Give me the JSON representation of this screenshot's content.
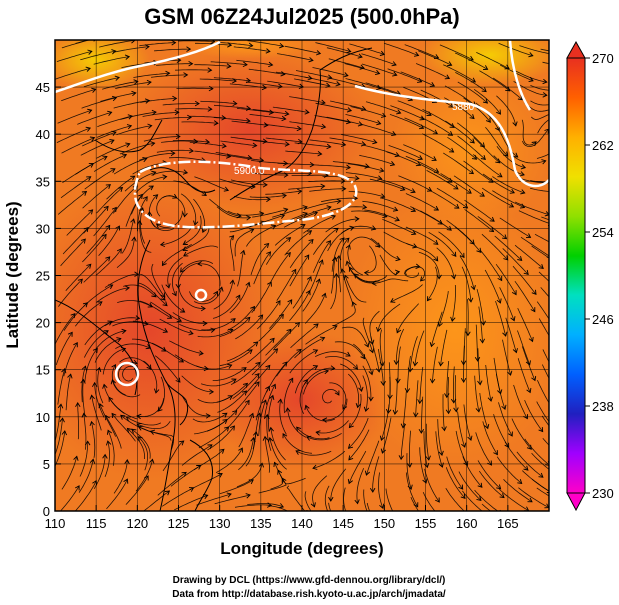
{
  "chart_data": {
    "type": "heatmap",
    "title": "GSM 06Z24Jul2025 (500.0hPa)",
    "xlabel": "Longitude (degrees)",
    "ylabel": "Latitude  (degrees)",
    "xlim": [
      110,
      170
    ],
    "ylim": [
      0,
      50
    ],
    "xticks": [
      110,
      115,
      120,
      125,
      130,
      135,
      140,
      145,
      150,
      155,
      160,
      165
    ],
    "yticks": [
      0,
      5,
      10,
      15,
      20,
      25,
      30,
      35,
      40,
      45
    ],
    "grid": true,
    "colorbar": {
      "min": 230,
      "max": 270,
      "ticks": [
        230,
        238,
        246,
        254,
        262,
        270
      ],
      "colors": [
        "#ff00c8",
        "#a000ff",
        "#2020c0",
        "#0060ff",
        "#00b0ff",
        "#00e0c0",
        "#00d000",
        "#90e000",
        "#f0e000",
        "#ffb000",
        "#ff6000",
        "#e83020"
      ],
      "placement": "right"
    },
    "contours": [
      {
        "value": "5900.0",
        "label": "5900.0"
      },
      {
        "value": "5880",
        "label": "5880"
      }
    ]
  },
  "credits": {
    "line1": "Drawing by DCL (https://www.gfd-dennou.org/library/dcl/)",
    "line2": "Data from http://database.rish.kyoto-u.ac.jp/arch/jmadata/"
  }
}
